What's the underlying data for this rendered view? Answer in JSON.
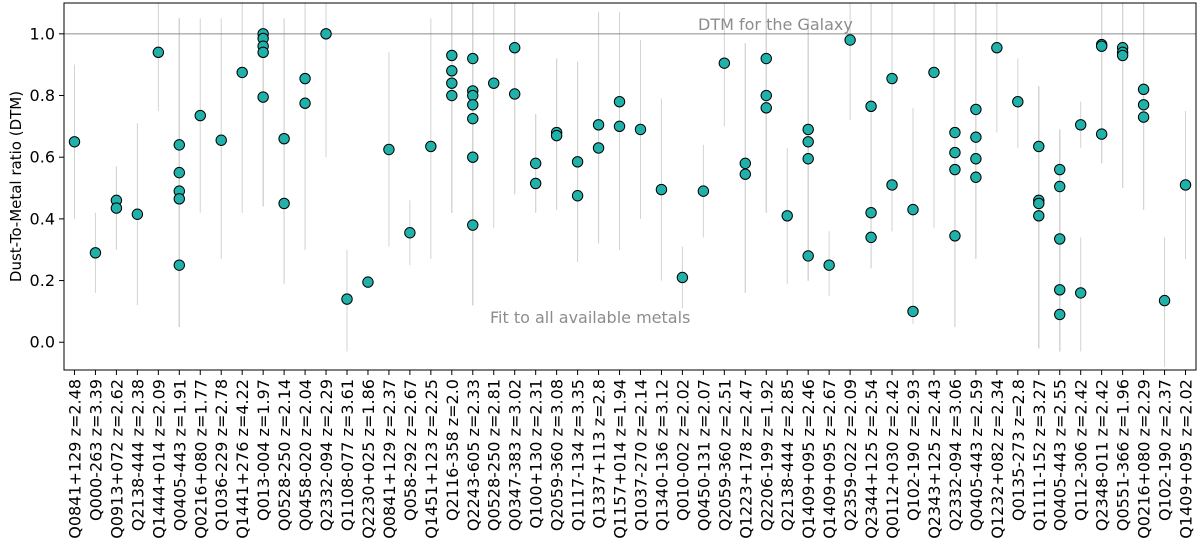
{
  "chart_data": {
    "type": "scatter",
    "ylabel": "Dust-To-Metal ratio (DTM)",
    "ylim": [
      -0.09,
      1.1
    ],
    "yticks": [
      0.0,
      0.2,
      0.4,
      0.6,
      0.8,
      1.0
    ],
    "ytick_labels": [
      "0.0",
      "0.2",
      "0.4",
      "0.6",
      "0.8",
      "1.0"
    ],
    "reference_line": {
      "y": 1.0,
      "label": "DTM for the Galaxy"
    },
    "annotation": "Fit to all available metals",
    "colors": {
      "marker_fill": "#20b2aa",
      "marker_edge": "#000000",
      "errorbar": "#d3d3d3",
      "reference_line": "#8c8c8c"
    },
    "categories": [
      "Q0841+129 z=2.48",
      "Q000-263 z=3.39",
      "Q0913+072 z=2.62",
      "Q2138-444 z=2.38",
      "Q1444+014 z=2.09",
      "Q0405-443 z=1.91",
      "Q0216+080 z=1.77",
      "Q1036-229 z=2.78",
      "Q1441+276 z=4.22",
      "Q013-004 z=1.97",
      "Q0528-250 z=2.14",
      "Q0458-020 z=2.04",
      "Q2332-094 z=2.29",
      "Q1108-077 z=3.61",
      "Q2230+025 z=1.86",
      "Q0841+129 z=2.37",
      "Q058-292 z=2.67",
      "Q1451+123 z=2.25",
      "Q2116-358 z=2.0",
      "Q2243-605 z=2.33",
      "Q0528-250 z=2.81",
      "Q0347-383 z=3.02",
      "Q100+130 z=2.31",
      "Q2059-360 z=3.08",
      "Q1117-134 z=3.35",
      "Q1337+113 z=2.8",
      "Q1157+014 z=1.94",
      "Q1037-270 z=2.14",
      "Q1340-136 z=3.12",
      "Q010-002 z=2.02",
      "Q0450-131 z=2.07",
      "Q2059-360 z=2.51",
      "Q1223+178 z=2.47",
      "Q2206-199 z=1.92",
      "Q2138-444 z=2.85",
      "Q1409+095 z=2.46",
      "Q1409+095 z=2.67",
      "Q2359-022 z=2.09",
      "Q2344+125 z=2.54",
      "Q0112+030 z=2.42",
      "Q102-190 z=2.93",
      "Q2343+125 z=2.43",
      "Q2332-094 z=3.06",
      "Q0405-443 z=2.59",
      "Q1232+082 z=2.34",
      "Q0135-273 z=2.8",
      "Q1111-152 z=3.27",
      "Q0405-443 z=2.55",
      "Q112-306 z=2.42",
      "Q2348-011 z=2.42",
      "Q0551-366 z=1.96",
      "Q0216+080 z=2.29",
      "Q102-190 z=2.37",
      "Q1409+095 z=2.02"
    ],
    "series": [
      {
        "index": 0,
        "points": [
          {
            "y": 0.65,
            "lo": 0.4,
            "hi": 0.9
          }
        ]
      },
      {
        "index": 1,
        "points": [
          {
            "y": 0.29,
            "lo": 0.16,
            "hi": 0.42
          }
        ]
      },
      {
        "index": 2,
        "points": [
          {
            "y": 0.46,
            "lo": 0.3,
            "hi": 0.57
          },
          {
            "y": 0.435,
            "lo": 0.3,
            "hi": 0.57
          }
        ]
      },
      {
        "index": 3,
        "points": [
          {
            "y": 0.415,
            "lo": 0.12,
            "hi": 0.71
          }
        ]
      },
      {
        "index": 4,
        "points": [
          {
            "y": 0.94,
            "lo": 0.75,
            "hi": 1.1
          }
        ]
      },
      {
        "index": 5,
        "points": [
          {
            "y": 0.64,
            "lo": 0.05,
            "hi": 1.05
          },
          {
            "y": 0.55,
            "lo": 0.05,
            "hi": 1.05
          },
          {
            "y": 0.49,
            "lo": 0.05,
            "hi": 1.05
          },
          {
            "y": 0.465,
            "lo": 0.05,
            "hi": 1.05
          },
          {
            "y": 0.25,
            "lo": 0.05,
            "hi": 1.05
          }
        ]
      },
      {
        "index": 6,
        "points": [
          {
            "y": 0.735,
            "lo": 0.42,
            "hi": 1.05
          }
        ]
      },
      {
        "index": 7,
        "points": [
          {
            "y": 0.655,
            "lo": 0.27,
            "hi": 1.05
          }
        ]
      },
      {
        "index": 8,
        "points": [
          {
            "y": 0.875,
            "lo": 0.42,
            "hi": 1.1
          }
        ]
      },
      {
        "index": 9,
        "points": [
          {
            "y": 1.0,
            "lo": 0.44,
            "hi": 1.1
          },
          {
            "y": 0.985,
            "lo": 0.44,
            "hi": 1.1
          },
          {
            "y": 0.96,
            "lo": 0.44,
            "hi": 1.1
          },
          {
            "y": 0.94,
            "lo": 0.44,
            "hi": 1.1
          },
          {
            "y": 0.795,
            "lo": 0.44,
            "hi": 1.1
          }
        ]
      },
      {
        "index": 10,
        "points": [
          {
            "y": 0.66,
            "lo": 0.19,
            "hi": 1.05
          },
          {
            "y": 0.45,
            "lo": 0.19,
            "hi": 1.05
          }
        ]
      },
      {
        "index": 11,
        "points": [
          {
            "y": 0.855,
            "lo": 0.3,
            "hi": 1.1
          },
          {
            "y": 0.775,
            "lo": 0.3,
            "hi": 1.1
          }
        ]
      },
      {
        "index": 12,
        "points": [
          {
            "y": 1.0,
            "lo": 0.6,
            "hi": 1.1
          }
        ]
      },
      {
        "index": 13,
        "points": [
          {
            "y": 0.14,
            "lo": -0.03,
            "hi": 0.3
          }
        ]
      },
      {
        "index": 14,
        "points": [
          {
            "y": 0.195,
            "lo": 0.195,
            "hi": 0.195
          }
        ]
      },
      {
        "index": 15,
        "points": [
          {
            "y": 0.625,
            "lo": 0.31,
            "hi": 0.94
          }
        ]
      },
      {
        "index": 16,
        "points": [
          {
            "y": 0.355,
            "lo": 0.25,
            "hi": 0.46
          }
        ]
      },
      {
        "index": 17,
        "points": [
          {
            "y": 0.635,
            "lo": 0.27,
            "hi": 1.05
          }
        ]
      },
      {
        "index": 18,
        "points": [
          {
            "y": 0.93,
            "lo": 0.42,
            "hi": 1.1
          },
          {
            "y": 0.88,
            "lo": 0.42,
            "hi": 1.1
          },
          {
            "y": 0.84,
            "lo": 0.42,
            "hi": 1.1
          },
          {
            "y": 0.8,
            "lo": 0.42,
            "hi": 1.1
          }
        ]
      },
      {
        "index": 19,
        "points": [
          {
            "y": 0.92,
            "lo": 0.12,
            "hi": 1.1
          },
          {
            "y": 0.815,
            "lo": 0.12,
            "hi": 1.1
          },
          {
            "y": 0.8,
            "lo": 0.12,
            "hi": 1.1
          },
          {
            "y": 0.77,
            "lo": 0.12,
            "hi": 1.1
          },
          {
            "y": 0.725,
            "lo": 0.12,
            "hi": 1.1
          },
          {
            "y": 0.6,
            "lo": 0.12,
            "hi": 1.1
          },
          {
            "y": 0.38,
            "lo": 0.12,
            "hi": 1.1
          }
        ]
      },
      {
        "index": 20,
        "points": [
          {
            "y": 0.84,
            "lo": 0.37,
            "hi": 1.1
          }
        ]
      },
      {
        "index": 21,
        "points": [
          {
            "y": 0.955,
            "lo": 0.48,
            "hi": 1.1
          },
          {
            "y": 0.805,
            "lo": 0.48,
            "hi": 1.1
          }
        ]
      },
      {
        "index": 22,
        "points": [
          {
            "y": 0.58,
            "lo": 0.42,
            "hi": 0.74
          },
          {
            "y": 0.515,
            "lo": 0.42,
            "hi": 0.74
          }
        ]
      },
      {
        "index": 23,
        "points": [
          {
            "y": 0.68,
            "lo": 0.43,
            "hi": 0.92
          },
          {
            "y": 0.67,
            "lo": 0.43,
            "hi": 0.92
          }
        ]
      },
      {
        "index": 24,
        "points": [
          {
            "y": 0.585,
            "lo": 0.26,
            "hi": 0.91
          },
          {
            "y": 0.475,
            "lo": 0.26,
            "hi": 0.91
          }
        ]
      },
      {
        "index": 25,
        "points": [
          {
            "y": 0.705,
            "lo": 0.32,
            "hi": 1.07
          },
          {
            "y": 0.63,
            "lo": 0.32,
            "hi": 1.07
          }
        ]
      },
      {
        "index": 26,
        "points": [
          {
            "y": 0.78,
            "lo": 0.3,
            "hi": 1.07
          },
          {
            "y": 0.7,
            "lo": 0.3,
            "hi": 1.07
          }
        ]
      },
      {
        "index": 27,
        "points": [
          {
            "y": 0.69,
            "lo": 0.4,
            "hi": 0.98
          }
        ]
      },
      {
        "index": 28,
        "points": [
          {
            "y": 0.495,
            "lo": 0.2,
            "hi": 0.79
          }
        ]
      },
      {
        "index": 29,
        "points": [
          {
            "y": 0.21,
            "lo": 0.11,
            "hi": 0.31
          }
        ]
      },
      {
        "index": 30,
        "points": [
          {
            "y": 0.49,
            "lo": 0.34,
            "hi": 0.64
          }
        ]
      },
      {
        "index": 31,
        "points": [
          {
            "y": 0.905,
            "lo": 0.7,
            "hi": 1.1
          }
        ]
      },
      {
        "index": 32,
        "points": [
          {
            "y": 0.58,
            "lo": 0.16,
            "hi": 0.97
          },
          {
            "y": 0.545,
            "lo": 0.16,
            "hi": 0.97
          }
        ]
      },
      {
        "index": 33,
        "points": [
          {
            "y": 0.92,
            "lo": 0.42,
            "hi": 1.1
          },
          {
            "y": 0.8,
            "lo": 0.42,
            "hi": 1.1
          },
          {
            "y": 0.76,
            "lo": 0.42,
            "hi": 1.1
          }
        ]
      },
      {
        "index": 34,
        "points": [
          {
            "y": 0.41,
            "lo": 0.19,
            "hi": 0.63
          }
        ]
      },
      {
        "index": 35,
        "points": [
          {
            "y": 0.69,
            "lo": 0.2,
            "hi": 1.05
          },
          {
            "y": 0.65,
            "lo": 0.2,
            "hi": 1.05
          },
          {
            "y": 0.595,
            "lo": 0.2,
            "hi": 1.05
          },
          {
            "y": 0.28,
            "lo": 0.2,
            "hi": 1.05
          }
        ]
      },
      {
        "index": 36,
        "points": [
          {
            "y": 0.25,
            "lo": 0.15,
            "hi": 0.36
          }
        ]
      },
      {
        "index": 37,
        "points": [
          {
            "y": 0.98,
            "lo": 0.72,
            "hi": 1.1
          }
        ]
      },
      {
        "index": 38,
        "points": [
          {
            "y": 0.765,
            "lo": 0.24,
            "hi": 1.1
          },
          {
            "y": 0.42,
            "lo": 0.24,
            "hi": 1.1
          },
          {
            "y": 0.34,
            "lo": 0.24,
            "hi": 1.1
          }
        ]
      },
      {
        "index": 39,
        "points": [
          {
            "y": 0.855,
            "lo": 0.36,
            "hi": 1.1
          },
          {
            "y": 0.51,
            "lo": 0.36,
            "hi": 1.1
          }
        ]
      },
      {
        "index": 40,
        "points": [
          {
            "y": 0.43,
            "lo": 0.06,
            "hi": 0.76
          },
          {
            "y": 0.1,
            "lo": 0.06,
            "hi": 0.76
          }
        ]
      },
      {
        "index": 41,
        "points": [
          {
            "y": 0.875,
            "lo": 0.37,
            "hi": 1.1
          }
        ]
      },
      {
        "index": 42,
        "points": [
          {
            "y": 0.68,
            "lo": 0.05,
            "hi": 1.1
          },
          {
            "y": 0.615,
            "lo": 0.05,
            "hi": 1.1
          },
          {
            "y": 0.56,
            "lo": 0.05,
            "hi": 1.1
          },
          {
            "y": 0.345,
            "lo": 0.05,
            "hi": 1.1
          }
        ]
      },
      {
        "index": 43,
        "points": [
          {
            "y": 0.755,
            "lo": 0.27,
            "hi": 1.1
          },
          {
            "y": 0.665,
            "lo": 0.27,
            "hi": 1.1
          },
          {
            "y": 0.595,
            "lo": 0.27,
            "hi": 1.1
          },
          {
            "y": 0.535,
            "lo": 0.27,
            "hi": 1.1
          }
        ]
      },
      {
        "index": 44,
        "points": [
          {
            "y": 0.955,
            "lo": 0.68,
            "hi": 1.1
          }
        ]
      },
      {
        "index": 45,
        "points": [
          {
            "y": 0.78,
            "lo": 0.63,
            "hi": 0.92
          }
        ]
      },
      {
        "index": 46,
        "points": [
          {
            "y": 0.635,
            "lo": -0.02,
            "hi": 0.83
          },
          {
            "y": 0.46,
            "lo": -0.02,
            "hi": 0.83
          },
          {
            "y": 0.45,
            "lo": -0.02,
            "hi": 0.83
          },
          {
            "y": 0.41,
            "lo": -0.02,
            "hi": 0.83
          }
        ]
      },
      {
        "index": 47,
        "points": [
          {
            "y": 0.56,
            "lo": -0.03,
            "hi": 0.69
          },
          {
            "y": 0.505,
            "lo": -0.03,
            "hi": 0.69
          },
          {
            "y": 0.335,
            "lo": -0.03,
            "hi": 0.69
          },
          {
            "y": 0.17,
            "lo": -0.03,
            "hi": 0.69
          },
          {
            "y": 0.09,
            "lo": -0.03,
            "hi": 0.69
          }
        ]
      },
      {
        "index": 48,
        "points": [
          {
            "y": 0.705,
            "lo": 0.63,
            "hi": 0.78
          },
          {
            "y": 0.16,
            "lo": -0.03,
            "hi": 0.34
          }
        ]
      },
      {
        "index": 49,
        "points": [
          {
            "y": 0.965,
            "lo": 0.58,
            "hi": 1.1
          },
          {
            "y": 0.96,
            "lo": 0.58,
            "hi": 1.1
          },
          {
            "y": 0.675,
            "lo": 0.58,
            "hi": 1.1
          }
        ]
      },
      {
        "index": 50,
        "points": [
          {
            "y": 0.955,
            "lo": 0.5,
            "hi": 1.1
          },
          {
            "y": 0.94,
            "lo": 0.5,
            "hi": 1.1
          },
          {
            "y": 0.93,
            "lo": 0.5,
            "hi": 1.1
          }
        ]
      },
      {
        "index": 51,
        "points": [
          {
            "y": 0.82,
            "lo": 0.43,
            "hi": 1.1
          },
          {
            "y": 0.77,
            "lo": 0.43,
            "hi": 1.1
          },
          {
            "y": 0.73,
            "lo": 0.43,
            "hi": 1.1
          }
        ]
      },
      {
        "index": 52,
        "points": [
          {
            "y": 0.135,
            "lo": -0.08,
            "hi": 0.34
          }
        ]
      },
      {
        "index": 53,
        "points": [
          {
            "y": 0.51,
            "lo": 0.27,
            "hi": 0.75
          }
        ]
      }
    ]
  }
}
